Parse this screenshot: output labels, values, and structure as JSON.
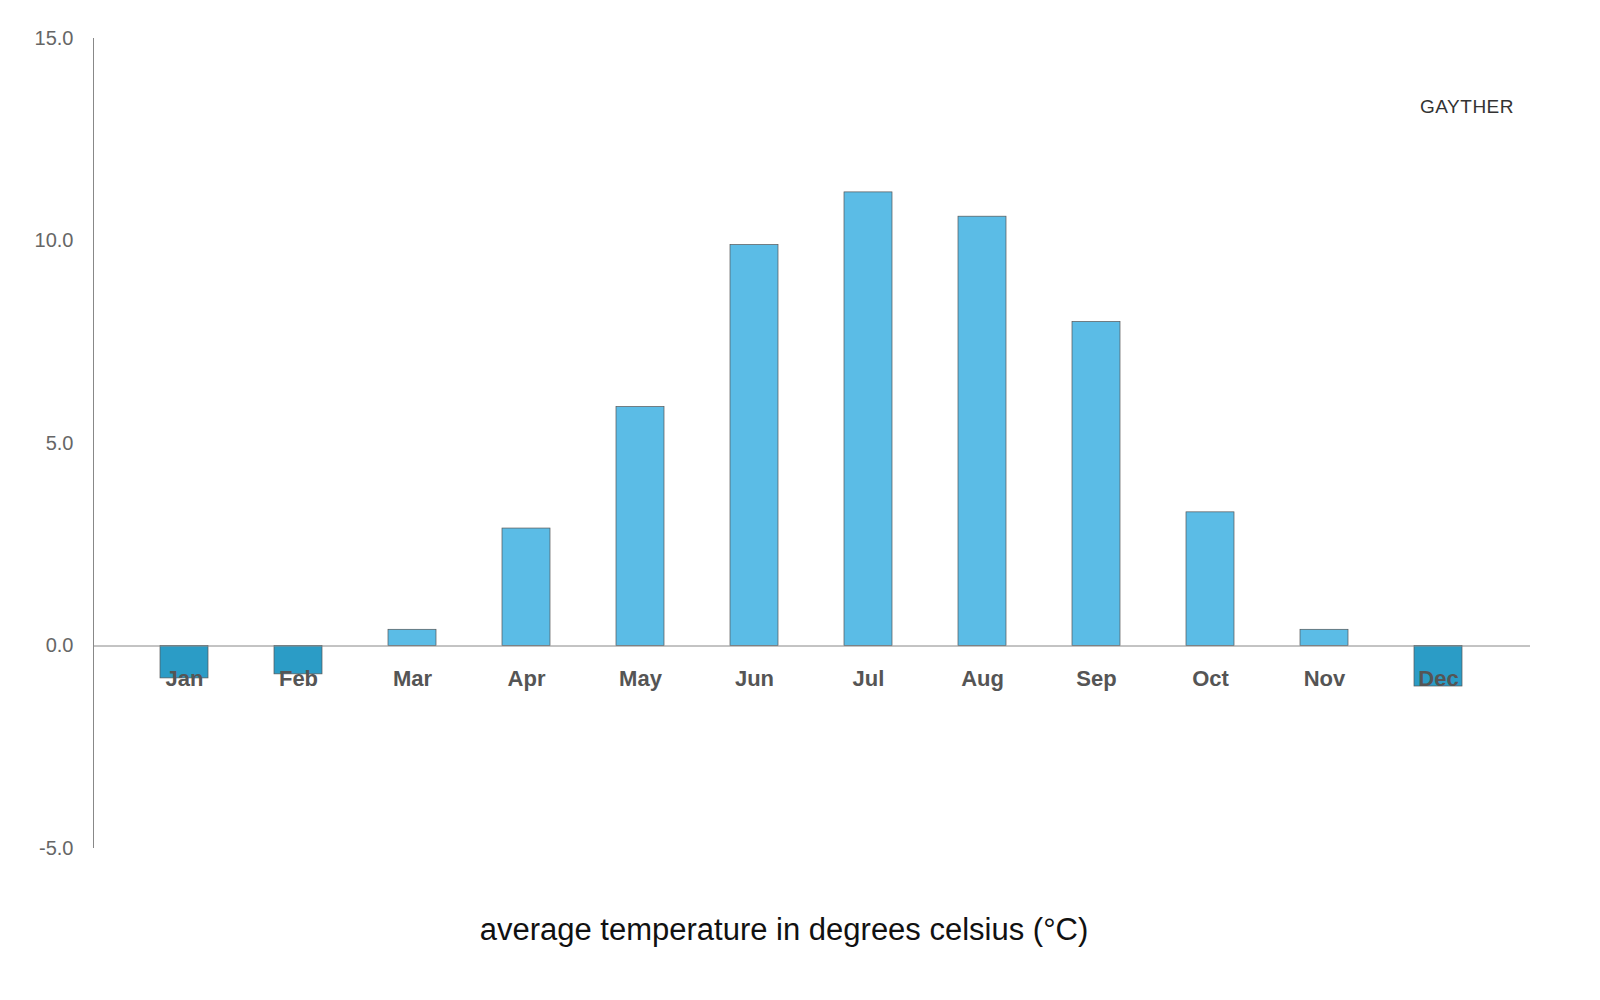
{
  "chart_data": {
    "type": "bar",
    "xlabel": "average temperature in degrees celsius (°C)",
    "annotations": [
      "GAYTHER"
    ],
    "categories": [
      "Jan",
      "Feb",
      "Mar",
      "Apr",
      "May",
      "Jun",
      "Jul",
      "Aug",
      "Sep",
      "Oct",
      "Nov",
      "Dec"
    ],
    "values": [
      -0.8,
      -0.7,
      0.4,
      2.9,
      5.9,
      9.9,
      11.2,
      10.6,
      8.0,
      3.3,
      0.4,
      -1.0
    ],
    "colors": [
      "#2b9cc6",
      "#2b9cc6",
      "#5bbce6",
      "#5bbce6",
      "#5bbce6",
      "#5bbce6",
      "#5bbce6",
      "#5bbce6",
      "#5bbce6",
      "#5bbce6",
      "#5bbce6",
      "#2b9cc6"
    ],
    "ylim": [
      -5,
      15
    ],
    "yticks": [
      {
        "value": -5,
        "label": "-5.0"
      },
      {
        "value": 0,
        "label": "0.0"
      },
      {
        "value": 5,
        "label": "5.0"
      },
      {
        "value": 10,
        "label": "10.0"
      },
      {
        "value": 15,
        "label": "15.0"
      }
    ],
    "grid": false
  }
}
